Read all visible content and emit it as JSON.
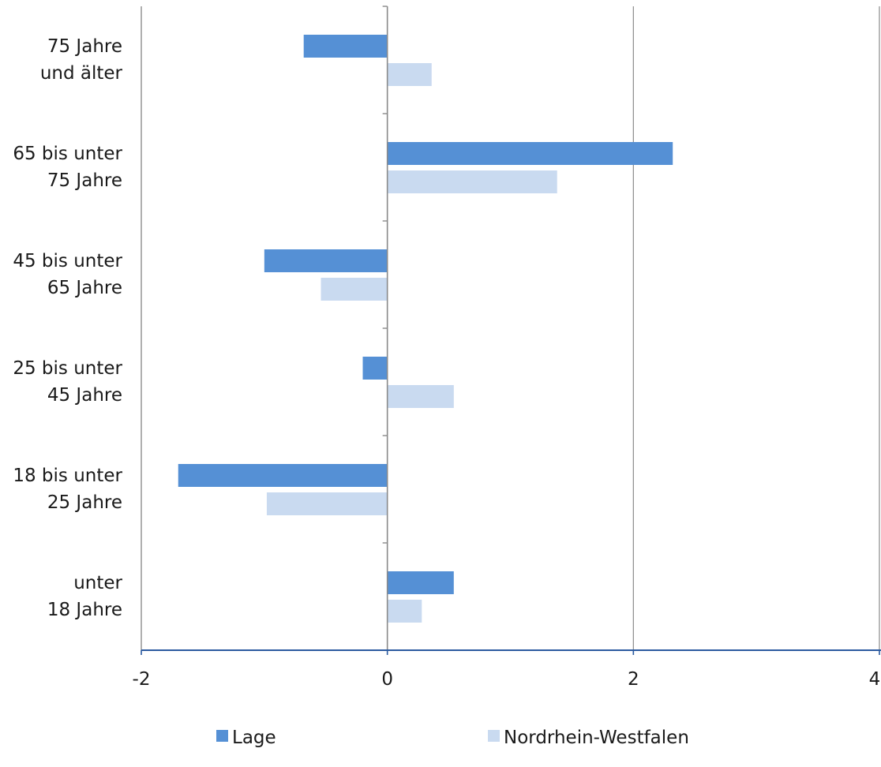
{
  "chart_data": {
    "type": "bar",
    "orientation": "horizontal",
    "categories": [
      [
        "75 Jahre",
        "und älter"
      ],
      [
        "65 bis unter",
        "75 Jahre"
      ],
      [
        "45 bis unter",
        "65 Jahre"
      ],
      [
        "25 bis unter",
        "45 Jahre"
      ],
      [
        "18 bis unter",
        "25 Jahre"
      ],
      [
        "unter",
        "18 Jahre"
      ]
    ],
    "series": [
      {
        "name": "Lage",
        "color": "#5590d5",
        "values": [
          -0.68,
          2.32,
          -1.0,
          -0.2,
          -1.7,
          0.54
        ]
      },
      {
        "name": "Nordrhein-Westfalen",
        "color": "#c9daf0",
        "values": [
          0.36,
          1.38,
          -0.54,
          0.54,
          -0.98,
          0.28
        ]
      }
    ],
    "xlim": [
      -2,
      4
    ],
    "xticks": [
      -2,
      0,
      2,
      4
    ],
    "xtick_labels": [
      "-2",
      "0",
      "2",
      "4"
    ],
    "grid": "vertical",
    "legend": "bottom",
    "title": "",
    "xlabel": "",
    "ylabel": ""
  }
}
